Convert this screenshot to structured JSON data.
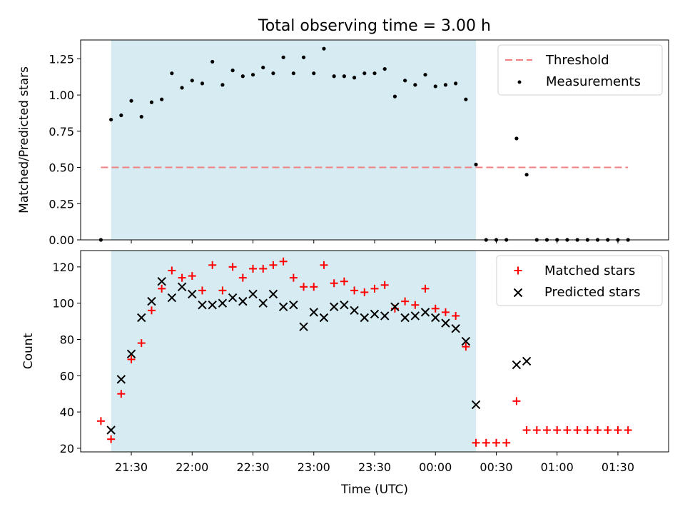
{
  "chart_data": [
    {
      "type": "scatter",
      "title": "Total observing time = 3.00 h",
      "ylabel": "Matched/Predicted stars",
      "xlabel": "",
      "xlim": [
        "21:05",
        "01:55"
      ],
      "ylim": [
        0,
        1.38
      ],
      "yticks": [
        "0.00",
        "0.25",
        "0.50",
        "0.75",
        "1.00",
        "1.25"
      ],
      "highlight_span": [
        "21:20",
        "00:20"
      ],
      "threshold": {
        "name": "Threshold",
        "value": 0.5,
        "x_from": "21:15",
        "x_to": "01:35",
        "color": "#f08080"
      },
      "legend_position": "top-right",
      "legend": [
        "Threshold",
        "Measurements"
      ],
      "series": [
        {
          "name": "Measurements",
          "color": "#000000",
          "x": [
            "21:15",
            "21:20",
            "21:25",
            "21:30",
            "21:35",
            "21:40",
            "21:45",
            "21:50",
            "21:55",
            "22:00",
            "22:05",
            "22:10",
            "22:15",
            "22:20",
            "22:25",
            "22:30",
            "22:35",
            "22:40",
            "22:45",
            "22:50",
            "22:55",
            "23:00",
            "23:05",
            "23:10",
            "23:15",
            "23:20",
            "23:25",
            "23:30",
            "23:35",
            "23:40",
            "23:45",
            "23:50",
            "23:55",
            "00:00",
            "00:05",
            "00:10",
            "00:15",
            "00:20",
            "00:25",
            "00:30",
            "00:35",
            "00:40",
            "00:45",
            "00:50",
            "00:55",
            "01:00",
            "01:05",
            "01:10",
            "01:15",
            "01:20",
            "01:25",
            "01:30",
            "01:35"
          ],
          "y": [
            0.0,
            0.83,
            0.86,
            0.96,
            0.85,
            0.95,
            0.97,
            1.15,
            1.05,
            1.1,
            1.08,
            1.23,
            1.07,
            1.17,
            1.13,
            1.14,
            1.19,
            1.15,
            1.26,
            1.15,
            1.26,
            1.15,
            1.32,
            1.13,
            1.13,
            1.12,
            1.15,
            1.15,
            1.18,
            0.99,
            1.1,
            1.07,
            1.14,
            1.06,
            1.07,
            1.08,
            0.97,
            0.52,
            0.0,
            0.0,
            0.0,
            0.7,
            0.45,
            0.0,
            0.0,
            0.0,
            0.0,
            0.0,
            0.0,
            0.0,
            0.0,
            0.0,
            0.0
          ]
        }
      ]
    },
    {
      "type": "scatter",
      "title": "",
      "ylabel": "Count",
      "xlabel": "Time (UTC)",
      "xlim": [
        "21:05",
        "01:55"
      ],
      "ylim": [
        18,
        129
      ],
      "yticks": [
        "20",
        "40",
        "60",
        "80",
        "100",
        "120"
      ],
      "xticks": [
        "21:30",
        "22:00",
        "22:30",
        "23:00",
        "23:30",
        "00:00",
        "00:30",
        "01:00",
        "01:30"
      ],
      "highlight_span": [
        "21:20",
        "00:20"
      ],
      "legend_position": "top-right",
      "legend": [
        "Matched stars",
        "Predicted stars"
      ],
      "series": [
        {
          "name": "Matched stars",
          "marker": "+",
          "color": "#ff0000",
          "x": [
            "21:15",
            "21:20",
            "21:25",
            "21:30",
            "21:35",
            "21:40",
            "21:45",
            "21:50",
            "21:55",
            "22:00",
            "22:05",
            "22:10",
            "22:15",
            "22:20",
            "22:25",
            "22:30",
            "22:35",
            "22:40",
            "22:45",
            "22:50",
            "22:55",
            "23:00",
            "23:05",
            "23:10",
            "23:15",
            "23:20",
            "23:25",
            "23:30",
            "23:35",
            "23:40",
            "23:45",
            "23:50",
            "23:55",
            "00:00",
            "00:05",
            "00:10",
            "00:15",
            "00:20",
            "00:25",
            "00:30",
            "00:35",
            "00:40",
            "00:45",
            "00:50",
            "00:55",
            "01:00",
            "01:05",
            "01:10",
            "01:15",
            "01:20",
            "01:25",
            "01:30",
            "01:35"
          ],
          "y": [
            35,
            25,
            50,
            69,
            78,
            96,
            108,
            118,
            114,
            115,
            107,
            121,
            107,
            120,
            114,
            119,
            119,
            121,
            123,
            114,
            109,
            109,
            121,
            111,
            112,
            107,
            106,
            108,
            110,
            97,
            101,
            99,
            108,
            97,
            95,
            93,
            76,
            23,
            23,
            23,
            23,
            46,
            30,
            30,
            30,
            30,
            30,
            30,
            30,
            30,
            30,
            30,
            30
          ]
        },
        {
          "name": "Predicted stars",
          "marker": "x",
          "color": "#000000",
          "x": [
            "21:20",
            "21:25",
            "21:30",
            "21:35",
            "21:40",
            "21:45",
            "21:50",
            "21:55",
            "22:00",
            "22:05",
            "22:10",
            "22:15",
            "22:20",
            "22:25",
            "22:30",
            "22:35",
            "22:40",
            "22:45",
            "22:50",
            "22:55",
            "23:00",
            "23:05",
            "23:10",
            "23:15",
            "23:20",
            "23:25",
            "23:30",
            "23:35",
            "23:40",
            "23:45",
            "23:50",
            "23:55",
            "00:00",
            "00:05",
            "00:10",
            "00:15",
            "00:20",
            "00:40",
            "00:45"
          ],
          "y": [
            30,
            58,
            72,
            92,
            101,
            112,
            103,
            109,
            105,
            99,
            99,
            100,
            103,
            101,
            105,
            100,
            105,
            98,
            99,
            87,
            95,
            92,
            98,
            99,
            96,
            92,
            94,
            93,
            98,
            92,
            93,
            95,
            92,
            89,
            86,
            79,
            44,
            66,
            68
          ]
        }
      ]
    }
  ]
}
